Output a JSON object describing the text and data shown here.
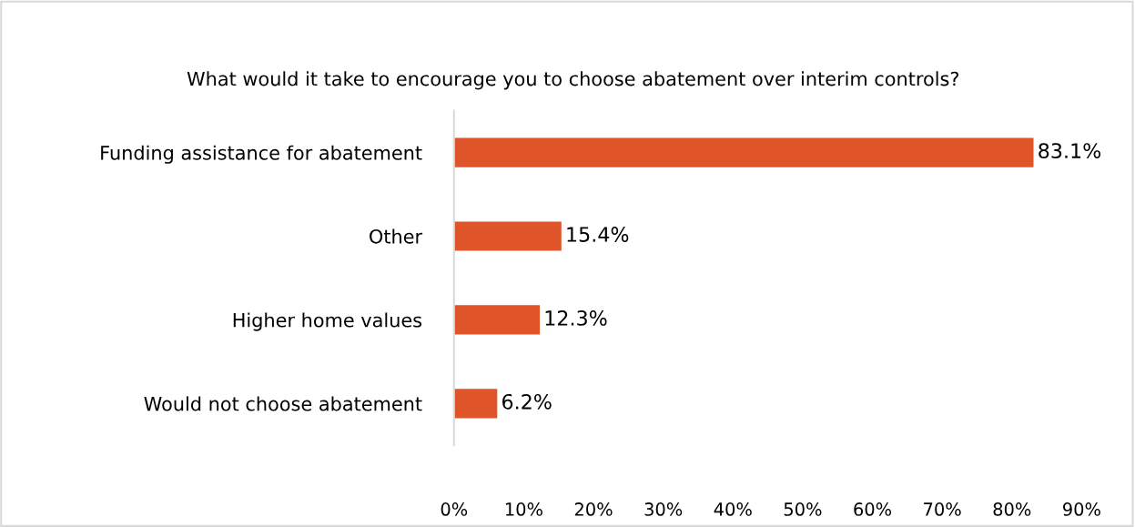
{
  "chart_data": {
    "type": "bar",
    "orientation": "horizontal",
    "title": "What would it take to encourage you to choose abatement over interim controls?",
    "categories": [
      "Funding assistance for abatement",
      "Other",
      "Higher home values",
      "Would not choose abatement"
    ],
    "values": [
      83.1,
      15.4,
      12.3,
      6.2
    ],
    "color": "#e0542a",
    "value_labels": [
      "83.1%",
      "15.4%",
      "12.3%",
      "6.2%"
    ],
    "xlim": [
      0,
      90
    ],
    "xticks": [
      {
        "value": 0,
        "label": "0%"
      },
      {
        "value": 10,
        "label": "10%"
      },
      {
        "value": 20,
        "label": "20%"
      },
      {
        "value": 30,
        "label": "30%"
      },
      {
        "value": 40,
        "label": "40%"
      },
      {
        "value": 50,
        "label": "50%"
      },
      {
        "value": 60,
        "label": "60%"
      },
      {
        "value": 70,
        "label": "70%"
      },
      {
        "value": 80,
        "label": "80%"
      },
      {
        "value": 90,
        "label": "90%"
      }
    ],
    "grid": false
  }
}
